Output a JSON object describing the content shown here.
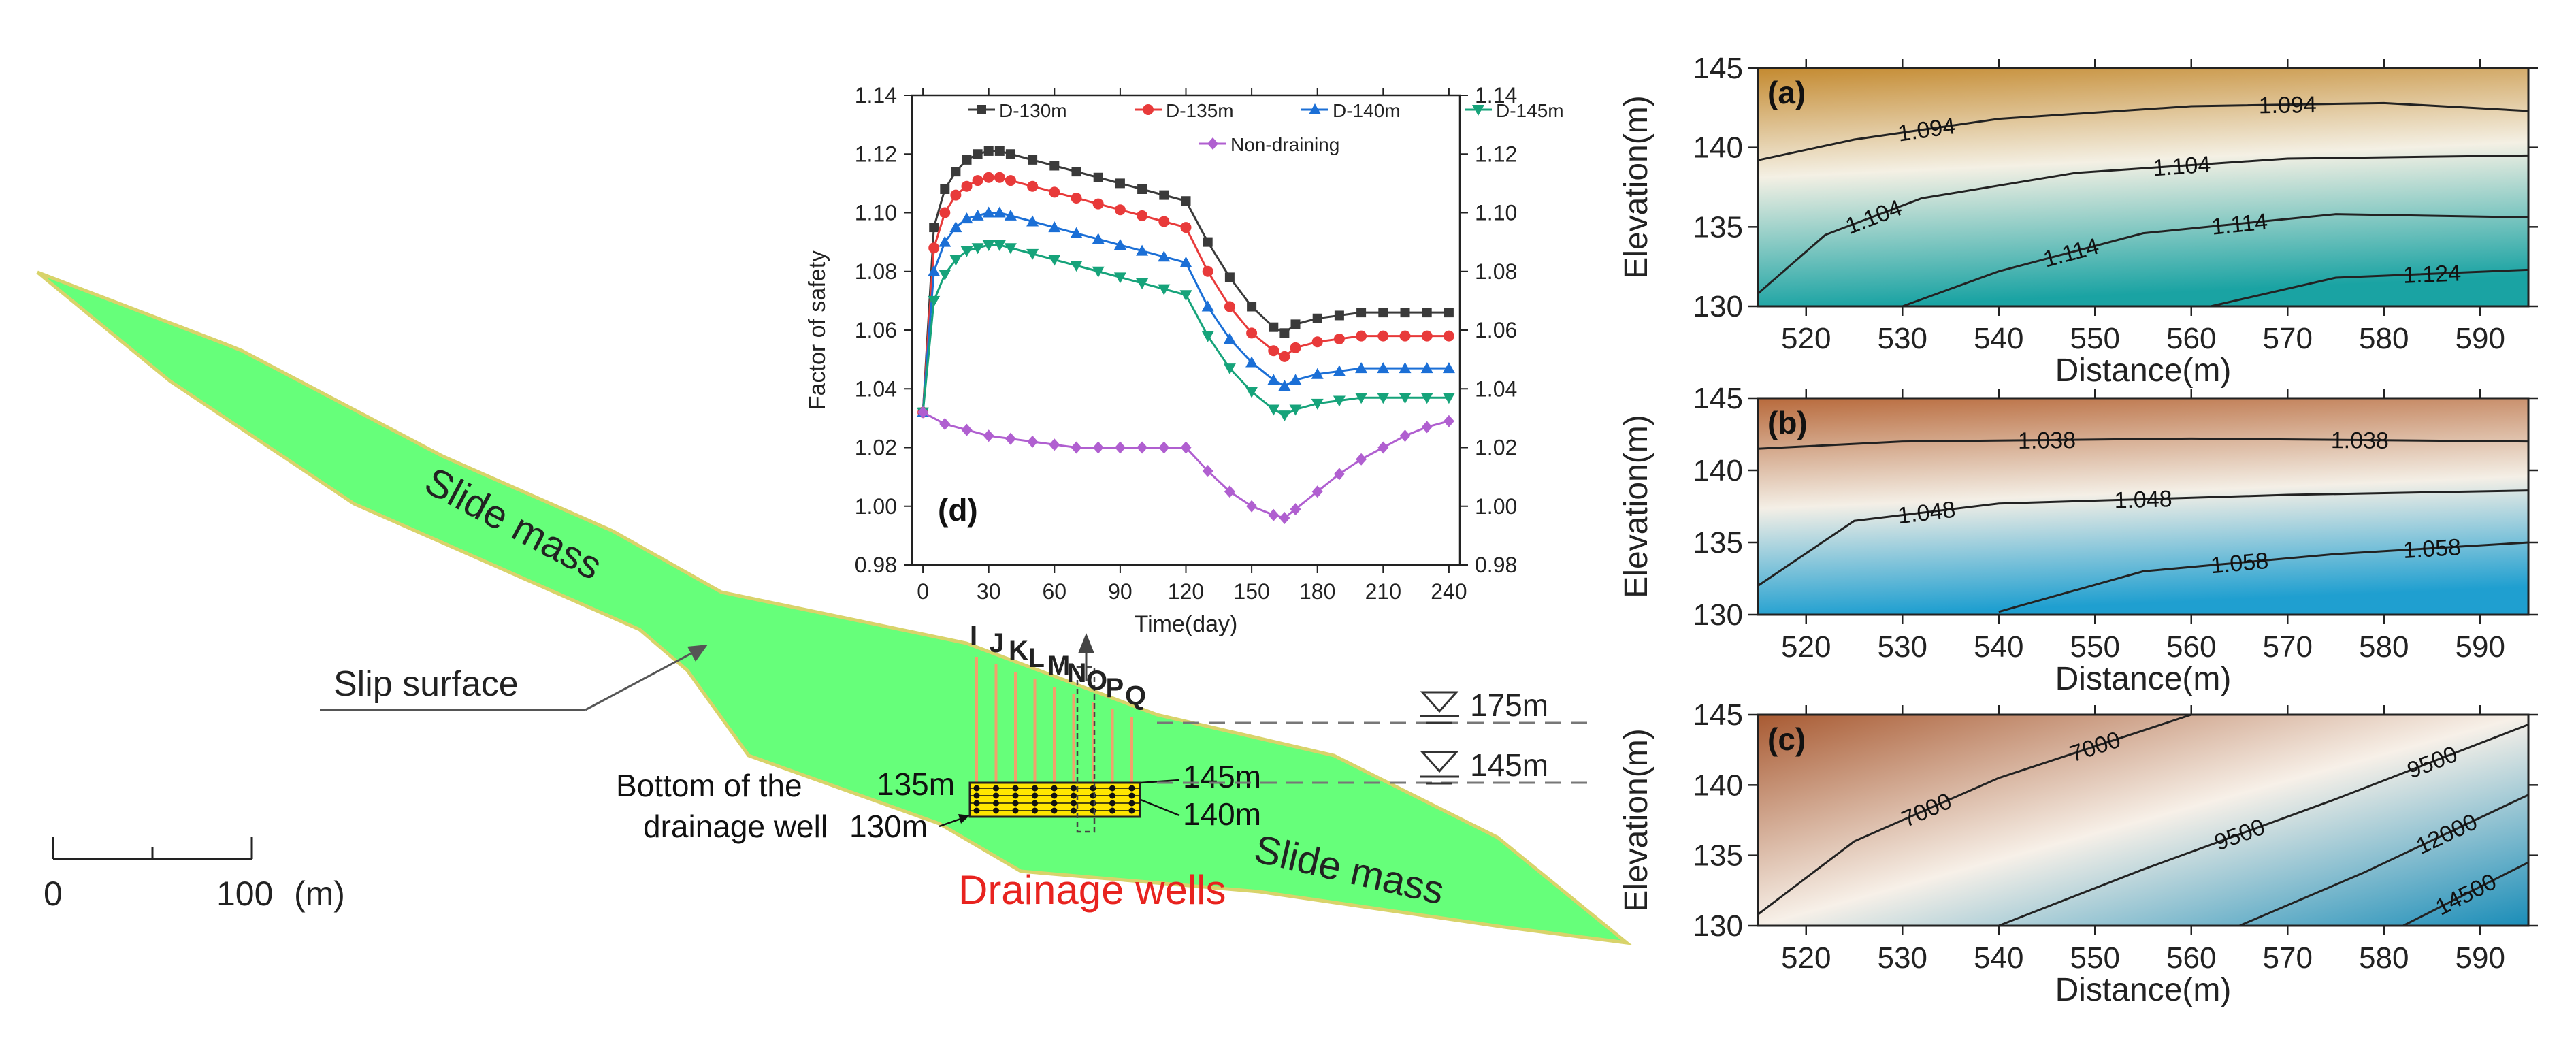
{
  "cross_section": {
    "slide_mass_upper": "Slide mass",
    "slide_mass_lower": "Slide mass",
    "slip_surface": "Slip surface",
    "well_letters": [
      "I",
      "J",
      "K",
      "L",
      "M",
      "N",
      "O",
      "P",
      "Q"
    ],
    "water_level_high": "175m",
    "water_level_low": "145m",
    "bottom_label_line1": "Bottom of the",
    "bottom_label_line2": "drainage well",
    "depth_135": "135m",
    "depth_130": "130m",
    "depth_145": "145m",
    "depth_140": "140m",
    "drainage_wells": "Drainage wells",
    "scale_zero": "0",
    "scale_hundred": "100",
    "scale_unit": "(m)",
    "colors": {
      "slide": "#66ff7a",
      "slide_edge": "#d8d36a",
      "wells": "#ff2020",
      "wells_label": "#e8231f",
      "well_pipe": "#f2a16c",
      "well_zone": "#ffe600"
    }
  },
  "chart_data": [
    {
      "id": "d",
      "type": "line",
      "panel_label": "(d)",
      "xlabel": "Time(day)",
      "ylabel": "Factor of safety",
      "xlim": [
        -5,
        245
      ],
      "ylim": [
        0.98,
        1.14
      ],
      "xticks": [
        "0",
        "30",
        "60",
        "90",
        "120",
        "150",
        "180",
        "210",
        "240"
      ],
      "yticks": [
        "0.98",
        "1.00",
        "1.02",
        "1.04",
        "1.06",
        "1.08",
        "1.10",
        "1.12",
        "1.14"
      ],
      "legend_position": "top",
      "series": [
        {
          "name": "D-130m",
          "color": "#3a3a3a",
          "marker": "square",
          "x": [
            0,
            5,
            10,
            15,
            20,
            25,
            30,
            35,
            40,
            50,
            60,
            70,
            80,
            90,
            100,
            110,
            120,
            130,
            140,
            150,
            160,
            165,
            170,
            180,
            190,
            200,
            210,
            220,
            230,
            240
          ],
          "y": [
            1.032,
            1.095,
            1.108,
            1.114,
            1.118,
            1.12,
            1.121,
            1.121,
            1.12,
            1.118,
            1.116,
            1.114,
            1.112,
            1.11,
            1.108,
            1.106,
            1.104,
            1.09,
            1.078,
            1.068,
            1.061,
            1.059,
            1.062,
            1.064,
            1.065,
            1.066,
            1.066,
            1.066,
            1.066,
            1.066
          ]
        },
        {
          "name": "D-135m",
          "color": "#e83a3a",
          "marker": "circle",
          "x": [
            0,
            5,
            10,
            15,
            20,
            25,
            30,
            35,
            40,
            50,
            60,
            70,
            80,
            90,
            100,
            110,
            120,
            130,
            140,
            150,
            160,
            165,
            170,
            180,
            190,
            200,
            210,
            220,
            230,
            240
          ],
          "y": [
            1.032,
            1.088,
            1.1,
            1.106,
            1.109,
            1.111,
            1.112,
            1.112,
            1.111,
            1.109,
            1.107,
            1.105,
            1.103,
            1.101,
            1.099,
            1.097,
            1.095,
            1.08,
            1.068,
            1.059,
            1.053,
            1.051,
            1.054,
            1.056,
            1.057,
            1.058,
            1.058,
            1.058,
            1.058,
            1.058
          ]
        },
        {
          "name": "D-140m",
          "color": "#1b6fd6",
          "marker": "triangle-up",
          "x": [
            0,
            5,
            10,
            15,
            20,
            25,
            30,
            35,
            40,
            50,
            60,
            70,
            80,
            90,
            100,
            110,
            120,
            130,
            140,
            150,
            160,
            165,
            170,
            180,
            190,
            200,
            210,
            220,
            230,
            240
          ],
          "y": [
            1.032,
            1.08,
            1.09,
            1.095,
            1.098,
            1.099,
            1.1,
            1.1,
            1.099,
            1.097,
            1.095,
            1.093,
            1.091,
            1.089,
            1.087,
            1.085,
            1.083,
            1.068,
            1.057,
            1.049,
            1.043,
            1.041,
            1.043,
            1.045,
            1.046,
            1.047,
            1.047,
            1.047,
            1.047,
            1.047
          ]
        },
        {
          "name": "D-145m",
          "color": "#16a37a",
          "marker": "triangle-down",
          "x": [
            0,
            5,
            10,
            15,
            20,
            25,
            30,
            35,
            40,
            50,
            60,
            70,
            80,
            90,
            100,
            110,
            120,
            130,
            140,
            150,
            160,
            165,
            170,
            180,
            190,
            200,
            210,
            220,
            230,
            240
          ],
          "y": [
            1.032,
            1.07,
            1.079,
            1.084,
            1.087,
            1.088,
            1.089,
            1.089,
            1.088,
            1.086,
            1.084,
            1.082,
            1.08,
            1.078,
            1.076,
            1.074,
            1.072,
            1.058,
            1.047,
            1.039,
            1.033,
            1.031,
            1.033,
            1.035,
            1.036,
            1.037,
            1.037,
            1.037,
            1.037,
            1.037
          ]
        },
        {
          "name": "Non-draining",
          "color": "#b05fd0",
          "marker": "diamond",
          "x": [
            0,
            10,
            20,
            30,
            40,
            50,
            60,
            70,
            80,
            90,
            100,
            110,
            120,
            130,
            140,
            150,
            160,
            165,
            170,
            180,
            190,
            200,
            210,
            220,
            230,
            240
          ],
          "y": [
            1.032,
            1.028,
            1.026,
            1.024,
            1.023,
            1.022,
            1.021,
            1.02,
            1.02,
            1.02,
            1.02,
            1.02,
            1.02,
            1.012,
            1.005,
            1.0,
            0.997,
            0.996,
            0.999,
            1.005,
            1.011,
            1.016,
            1.02,
            1.024,
            1.027,
            1.029
          ]
        }
      ]
    },
    {
      "id": "a",
      "type": "heatmap",
      "panel_label": "(a)",
      "xlabel": "Distance(m)",
      "ylabel": "Elevation(m)",
      "xlim": [
        515,
        595
      ],
      "ylim": [
        130,
        145
      ],
      "xticks": [
        "520",
        "530",
        "540",
        "550",
        "560",
        "570",
        "580",
        "590"
      ],
      "yticks": [
        "130",
        "135",
        "140",
        "145"
      ],
      "colors": {
        "top": "#c48a30",
        "mid": "#f4f0e4",
        "bottom": "#1aa3a3"
      },
      "contours": [
        {
          "label": "1.094",
          "labels": [
            "1.094",
            "1.094"
          ],
          "points": [
            [
              515,
              139.2
            ],
            [
              525,
              140.5
            ],
            [
              540,
              141.8
            ],
            [
              560,
              142.6
            ],
            [
              580,
              142.8
            ],
            [
              595,
              142.3
            ]
          ]
        },
        {
          "label": "1.104",
          "labels": [
            "1.104",
            "1.104"
          ],
          "points": [
            [
              515,
              130.8
            ],
            [
              522,
              134.5
            ],
            [
              532,
              136.8
            ],
            [
              548,
              138.4
            ],
            [
              570,
              139.3
            ],
            [
              595,
              139.5
            ]
          ]
        },
        {
          "label": "1.114",
          "labels": [
            "1.114",
            "1.114"
          ],
          "points": [
            [
              530,
              130.0
            ],
            [
              540,
              132.2
            ],
            [
              555,
              134.6
            ],
            [
              575,
              135.8
            ],
            [
              595,
              135.6
            ]
          ]
        },
        {
          "label": "1.124",
          "labels": [
            "1.124"
          ],
          "points": [
            [
              562,
              130.0
            ],
            [
              575,
              131.8
            ],
            [
              595,
              132.3
            ]
          ]
        }
      ]
    },
    {
      "id": "b",
      "type": "heatmap",
      "panel_label": "(b)",
      "xlabel": "Distance(m)",
      "ylabel": "Elevation(m)",
      "xlim": [
        515,
        595
      ],
      "ylim": [
        130,
        145
      ],
      "xticks": [
        "520",
        "530",
        "540",
        "550",
        "560",
        "570",
        "580",
        "590"
      ],
      "yticks": [
        "130",
        "135",
        "140",
        "145"
      ],
      "colors": {
        "top": "#b86a3c",
        "mid": "#f4efe6",
        "bottom": "#1f9fd0"
      },
      "contours": [
        {
          "label": "1.038",
          "labels": [
            "1.038",
            "1.038"
          ],
          "points": [
            [
              515,
              141.5
            ],
            [
              530,
              142.0
            ],
            [
              560,
              142.2
            ],
            [
              595,
              142.0
            ]
          ]
        },
        {
          "label": "1.048",
          "labels": [
            "1.048",
            "1.048"
          ],
          "points": [
            [
              515,
              132.0
            ],
            [
              525,
              136.5
            ],
            [
              540,
              137.7
            ],
            [
              570,
              138.3
            ],
            [
              595,
              138.6
            ]
          ]
        },
        {
          "label": "1.058",
          "labels": [
            "1.058",
            "1.058"
          ],
          "points": [
            [
              540,
              130.2
            ],
            [
              555,
              133.0
            ],
            [
              575,
              134.2
            ],
            [
              595,
              135.0
            ]
          ]
        }
      ]
    },
    {
      "id": "c",
      "type": "heatmap",
      "panel_label": "(c)",
      "xlabel": "Distance(m)",
      "ylabel": "Elevation(m)",
      "xlim": [
        515,
        595
      ],
      "ylim": [
        130,
        145
      ],
      "xticks": [
        "520",
        "530",
        "540",
        "550",
        "560",
        "570",
        "580",
        "590"
      ],
      "yticks": [
        "130",
        "135",
        "140",
        "145"
      ],
      "colors": {
        "top": "#a85a32",
        "mid": "#f7f0e8",
        "bottom": "#1a8db8"
      },
      "contours": [
        {
          "label": "7000",
          "labels": [
            "7000",
            "7000"
          ],
          "points": [
            [
              515,
              130.8
            ],
            [
              525,
              136.0
            ],
            [
              540,
              140.5
            ],
            [
              560,
              145.0
            ]
          ]
        },
        {
          "label": "9500",
          "labels": [
            "9500",
            "9500"
          ],
          "points": [
            [
              540,
              130.0
            ],
            [
              555,
              134.0
            ],
            [
              575,
              139.0
            ],
            [
              595,
              144.3
            ]
          ]
        },
        {
          "label": "12000",
          "labels": [
            "12000"
          ],
          "points": [
            [
              565,
              130.0
            ],
            [
              578,
              133.8
            ],
            [
              595,
              139.3
            ]
          ]
        },
        {
          "label": "14500",
          "labels": [
            "14500"
          ],
          "points": [
            [
              582,
              130.0
            ],
            [
              595,
              134.5
            ]
          ]
        }
      ]
    }
  ]
}
